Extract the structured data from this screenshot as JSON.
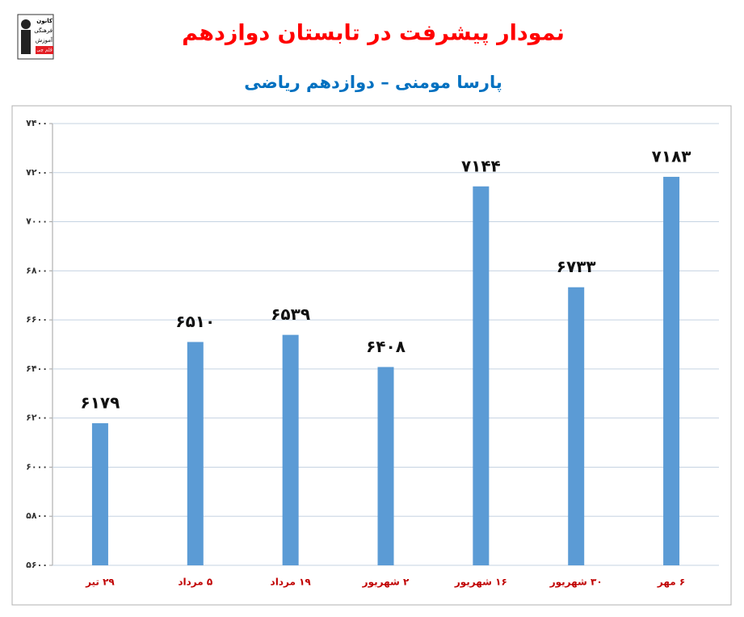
{
  "logo": [
    "کانون",
    "فرهنگی",
    "آموزش",
    "قلم چی"
  ],
  "chart_data": {
    "type": "bar",
    "title": "نمودار پیشرفت در تابستان دوازدهم",
    "subtitle": "پارسا مومنی – دوازدهم ریاضی",
    "categories": [
      "۲۹ تیر",
      "۵ مرداد",
      "۱۹ مرداد",
      "۲ شهریور",
      "۱۶ شهریور",
      "۳۰ شهریور",
      "۶ مهر"
    ],
    "values": [
      6179,
      6510,
      6539,
      6408,
      7144,
      6733,
      7183
    ],
    "value_labels": [
      "۶۱۷۹",
      "۶۵۱۰",
      "۶۵۳۹",
      "۶۴۰۸",
      "۷۱۴۴",
      "۶۷۳۳",
      "۷۱۸۳"
    ],
    "color": "#5b9bd5",
    "ylim": [
      5600,
      7400
    ],
    "yticks": [
      {
        "value": 5600,
        "label": "۵۶۰۰"
      },
      {
        "value": 5800,
        "label": "۵۸۰۰"
      },
      {
        "value": 6000,
        "label": "۶۰۰۰"
      },
      {
        "value": 6200,
        "label": "۶۲۰۰"
      },
      {
        "value": 6400,
        "label": "۶۴۰۰"
      },
      {
        "value": 6600,
        "label": "۶۶۰۰"
      },
      {
        "value": 6800,
        "label": "۶۸۰۰"
      },
      {
        "value": 7000,
        "label": "۷۰۰۰"
      },
      {
        "value": 7200,
        "label": "۷۲۰۰"
      },
      {
        "value": 7400,
        "label": "۷۴۰۰"
      }
    ],
    "grid": true
  }
}
